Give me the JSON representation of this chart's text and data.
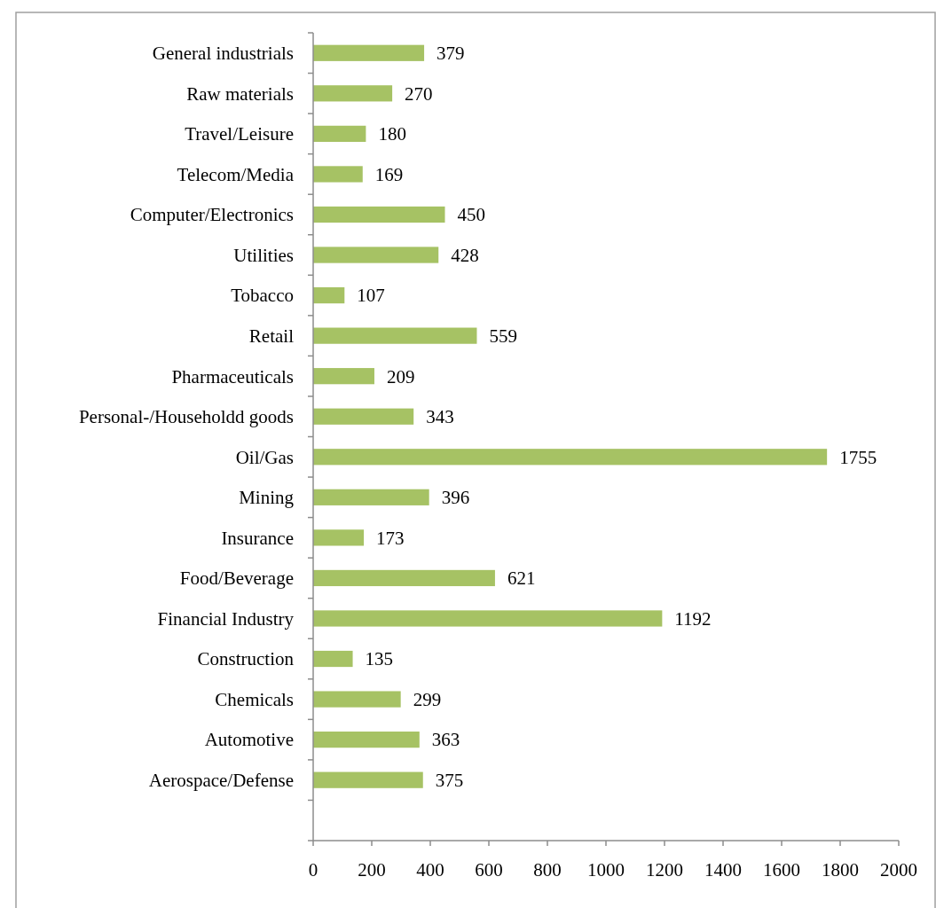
{
  "chart_data": {
    "type": "bar",
    "orientation": "horizontal",
    "categories": [
      "General industrials",
      "Raw materials",
      "Travel/Leisure",
      "Telecom/Media",
      "Computer/Electronics",
      "Utilities",
      "Tobacco",
      "Retail",
      "Pharmaceuticals",
      "Personal-/Householdd goods",
      "Oil/Gas",
      "Mining",
      "Insurance",
      "Food/Beverage",
      "Financial Industry",
      "Construction",
      "Chemicals",
      "Automotive",
      "Aerospace/Defense",
      null
    ],
    "values": [
      379,
      270,
      180,
      169,
      450,
      428,
      107,
      559,
      209,
      343,
      1755,
      396,
      173,
      621,
      1192,
      135,
      299,
      363,
      375,
      null
    ],
    "color": "#a6c264",
    "xlim": [
      0,
      2000
    ],
    "xticks": [
      0,
      200,
      400,
      600,
      800,
      1000,
      1200,
      1400,
      1600,
      1800,
      2000
    ],
    "data_labels": true,
    "grid": false
  }
}
